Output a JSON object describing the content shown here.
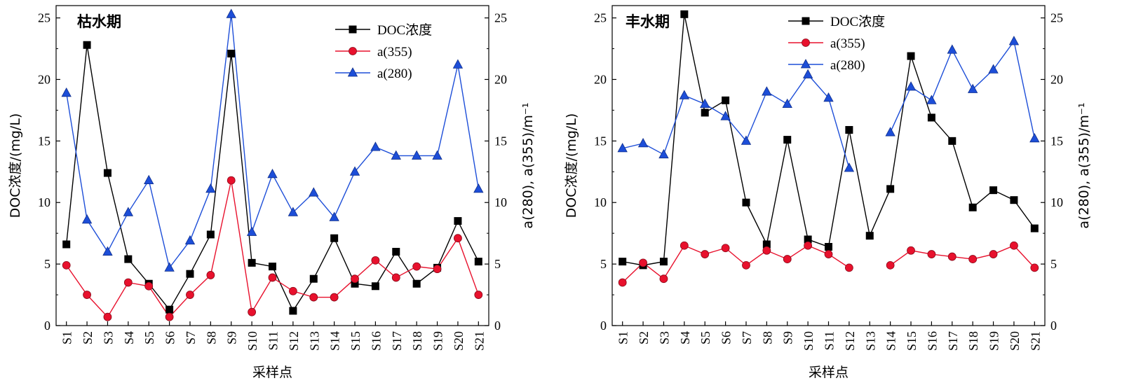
{
  "chart_data": [
    {
      "type": "line",
      "title": "枯水期",
      "xlabel": "采样点",
      "ylabel_left": "DOC浓度/(mg/L)",
      "ylabel_right": "a(280), a(355)/m⁻¹",
      "categories": [
        "S1",
        "S2",
        "S3",
        "S4",
        "S5",
        "S6",
        "S7",
        "S8",
        "S9",
        "S10",
        "S11",
        "S12",
        "S13",
        "S14",
        "S15",
        "S16",
        "S17",
        "S18",
        "S19",
        "S20",
        "S21"
      ],
      "ylim": [
        0,
        26
      ],
      "yticks": [
        0,
        5,
        10,
        15,
        20,
        25
      ],
      "legend_position": "top-right",
      "series": [
        {
          "name": "DOC浓度",
          "marker": "square",
          "color": "#000000",
          "axis": "left",
          "values": [
            6.6,
            22.8,
            12.4,
            5.4,
            3.4,
            1.3,
            4.2,
            7.4,
            22.1,
            5.1,
            4.8,
            1.2,
            3.8,
            7.1,
            3.4,
            3.2,
            6.0,
            3.4,
            4.7,
            8.5,
            5.2
          ]
        },
        {
          "name": "a(355)",
          "marker": "circle",
          "color": "#e8112d",
          "axis": "right",
          "values": [
            4.9,
            2.5,
            0.7,
            3.5,
            3.2,
            0.7,
            2.5,
            4.1,
            11.8,
            1.1,
            3.9,
            2.8,
            2.3,
            2.3,
            3.8,
            5.3,
            3.9,
            4.8,
            4.6,
            7.1,
            2.5
          ]
        },
        {
          "name": "a(280)",
          "marker": "triangle",
          "color": "#1d4ed8",
          "axis": "right",
          "values": [
            18.9,
            8.6,
            6.0,
            9.2,
            11.8,
            4.7,
            6.9,
            11.1,
            25.3,
            7.6,
            12.3,
            9.2,
            10.8,
            8.8,
            12.5,
            14.5,
            13.8,
            13.8,
            13.8,
            21.2,
            11.1
          ]
        }
      ]
    },
    {
      "type": "line",
      "title": "丰水期",
      "xlabel": "采样点",
      "ylabel_left": "DOC浓度/(mg/L)",
      "ylabel_right": "a(280), a(355)/m⁻¹",
      "categories": [
        "S1",
        "S2",
        "S3",
        "S4",
        "S5",
        "S6",
        "S7",
        "S8",
        "S9",
        "S10",
        "S11",
        "S12",
        "S13",
        "S14",
        "S15",
        "S16",
        "S17",
        "S18",
        "S19",
        "S20",
        "S21"
      ],
      "ylim": [
        0,
        26
      ],
      "yticks": [
        0,
        5,
        10,
        15,
        20,
        25
      ],
      "legend_position": "top-center",
      "series": [
        {
          "name": "DOC浓度",
          "marker": "square",
          "color": "#000000",
          "axis": "left",
          "values": [
            5.2,
            4.9,
            5.2,
            25.3,
            17.3,
            18.3,
            10.0,
            6.6,
            15.1,
            7.0,
            6.4,
            15.9,
            7.3,
            11.1,
            21.9,
            16.9,
            15.0,
            9.6,
            11.0,
            10.2,
            7.9
          ]
        },
        {
          "name": "a(355)",
          "marker": "circle",
          "color": "#e8112d",
          "axis": "right",
          "values": [
            3.5,
            5.1,
            3.8,
            6.5,
            5.8,
            6.3,
            4.9,
            6.1,
            5.4,
            6.5,
            5.8,
            4.7,
            null,
            4.9,
            6.1,
            5.8,
            5.6,
            5.4,
            5.8,
            6.5,
            4.7
          ]
        },
        {
          "name": "a(280)",
          "marker": "triangle",
          "color": "#1d4ed8",
          "axis": "right",
          "values": [
            14.4,
            14.8,
            13.9,
            18.7,
            18.0,
            17.0,
            15.0,
            19.0,
            18.0,
            20.4,
            18.5,
            12.8,
            null,
            15.7,
            19.4,
            18.3,
            22.4,
            19.2,
            20.8,
            23.1,
            15.2
          ]
        }
      ]
    }
  ]
}
